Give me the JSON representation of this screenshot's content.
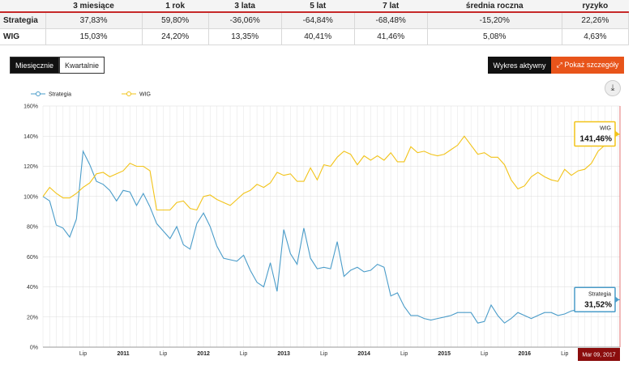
{
  "table": {
    "headers": [
      "",
      "3 miesiące",
      "1 rok",
      "3 lata",
      "5 lat",
      "7 lat",
      "średnia roczna",
      "ryzyko"
    ],
    "rows": [
      {
        "name": "Strategia",
        "values": [
          "37,83%",
          "59,80%",
          "-36,06%",
          "-64,84%",
          "-68,48%",
          "-15,20%",
          "22,26%"
        ]
      },
      {
        "name": "WIG",
        "values": [
          "15,03%",
          "24,20%",
          "13,35%",
          "40,41%",
          "41,46%",
          "5,08%",
          "4,63%"
        ]
      }
    ]
  },
  "controls": {
    "monthly_label": "Miesięcznie",
    "quarterly_label": "Kwartalnie",
    "active_chart_label": "Wykres aktywny",
    "details_label": "Pokaż szczegóły",
    "download_icon": "download-icon",
    "expand_icon": "expand-icon"
  },
  "colors": {
    "strategia": "#4a9cc9",
    "wig": "#f2c318",
    "accent": "#e8541a",
    "date_badge": "#8b0d0d"
  },
  "chart_data": {
    "type": "line",
    "title": "",
    "xlabel": "",
    "ylabel": "",
    "ylim": [
      0,
      160
    ],
    "y_ticks": [
      "0%",
      "20%",
      "40%",
      "60%",
      "80%",
      "100%",
      "120%",
      "140%",
      "160%"
    ],
    "x_ticks": [
      "Lip",
      "2011",
      "Lip",
      "2012",
      "Lip",
      "2013",
      "Lip",
      "2014",
      "Lip",
      "2015",
      "Lip",
      "2016",
      "Lip"
    ],
    "x_range": [
      "2010-01",
      "2017-03"
    ],
    "grid": true,
    "legend_position": "top-left",
    "current_date": "Mar 09, 2017",
    "series": [
      {
        "name": "Strategia",
        "last_value_label": "31,52%",
        "points": [
          [
            "2010-01",
            100
          ],
          [
            "2010-02",
            97
          ],
          [
            "2010-03",
            81
          ],
          [
            "2010-04",
            79
          ],
          [
            "2010-05",
            73
          ],
          [
            "2010-06",
            85
          ],
          [
            "2010-07",
            130
          ],
          [
            "2010-08",
            121
          ],
          [
            "2010-09",
            110
          ],
          [
            "2010-10",
            108
          ],
          [
            "2010-11",
            104
          ],
          [
            "2010-12",
            97
          ],
          [
            "2011-01",
            104
          ],
          [
            "2011-02",
            103
          ],
          [
            "2011-03",
            94
          ],
          [
            "2011-04",
            102
          ],
          [
            "2011-05",
            93
          ],
          [
            "2011-06",
            82
          ],
          [
            "2011-07",
            77
          ],
          [
            "2011-08",
            72
          ],
          [
            "2011-09",
            80
          ],
          [
            "2011-10",
            68
          ],
          [
            "2011-11",
            65
          ],
          [
            "2011-12",
            82
          ],
          [
            "2012-01",
            89
          ],
          [
            "2012-02",
            80
          ],
          [
            "2012-03",
            67
          ],
          [
            "2012-04",
            59
          ],
          [
            "2012-05",
            58
          ],
          [
            "2012-06",
            57
          ],
          [
            "2012-07",
            61
          ],
          [
            "2012-08",
            51
          ],
          [
            "2012-09",
            43
          ],
          [
            "2012-10",
            40
          ],
          [
            "2012-11",
            56
          ],
          [
            "2012-12",
            37
          ],
          [
            "2013-01",
            78
          ],
          [
            "2013-02",
            62
          ],
          [
            "2013-03",
            55
          ],
          [
            "2013-04",
            79
          ],
          [
            "2013-05",
            59
          ],
          [
            "2013-06",
            52
          ],
          [
            "2013-07",
            53
          ],
          [
            "2013-08",
            52
          ],
          [
            "2013-09",
            70
          ],
          [
            "2013-10",
            47
          ],
          [
            "2013-11",
            51
          ],
          [
            "2013-12",
            53
          ],
          [
            "2014-01",
            50
          ],
          [
            "2014-02",
            51
          ],
          [
            "2014-03",
            55
          ],
          [
            "2014-04",
            53
          ],
          [
            "2014-05",
            34
          ],
          [
            "2014-06",
            36
          ],
          [
            "2014-07",
            27
          ],
          [
            "2014-08",
            21
          ],
          [
            "2014-09",
            21
          ],
          [
            "2014-10",
            19
          ],
          [
            "2014-11",
            18
          ],
          [
            "2014-12",
            19
          ],
          [
            "2015-01",
            20
          ],
          [
            "2015-02",
            21
          ],
          [
            "2015-03",
            23
          ],
          [
            "2015-04",
            23
          ],
          [
            "2015-05",
            23
          ],
          [
            "2015-06",
            16
          ],
          [
            "2015-07",
            17
          ],
          [
            "2015-08",
            28
          ],
          [
            "2015-09",
            21
          ],
          [
            "2015-10",
            16
          ],
          [
            "2015-11",
            19
          ],
          [
            "2015-12",
            23
          ],
          [
            "2016-01",
            21
          ],
          [
            "2016-02",
            19
          ],
          [
            "2016-03",
            21
          ],
          [
            "2016-04",
            23
          ],
          [
            "2016-05",
            23
          ],
          [
            "2016-06",
            21
          ],
          [
            "2016-07",
            22
          ],
          [
            "2016-08",
            24
          ],
          [
            "2016-09",
            25
          ],
          [
            "2016-10",
            26
          ],
          [
            "2016-11",
            27
          ],
          [
            "2016-12",
            29
          ],
          [
            "2017-01",
            30
          ],
          [
            "2017-02",
            31
          ],
          [
            "2017-03",
            31.52
          ]
        ]
      },
      {
        "name": "WIG",
        "last_value_label": "141,46%",
        "points": [
          [
            "2010-01",
            100
          ],
          [
            "2010-02",
            106
          ],
          [
            "2010-03",
            102
          ],
          [
            "2010-04",
            99
          ],
          [
            "2010-05",
            99
          ],
          [
            "2010-06",
            102
          ],
          [
            "2010-07",
            106
          ],
          [
            "2010-08",
            109
          ],
          [
            "2010-09",
            115
          ],
          [
            "2010-10",
            116
          ],
          [
            "2010-11",
            113
          ],
          [
            "2010-12",
            115
          ],
          [
            "2011-01",
            117
          ],
          [
            "2011-02",
            122
          ],
          [
            "2011-03",
            120
          ],
          [
            "2011-04",
            120
          ],
          [
            "2011-05",
            117
          ],
          [
            "2011-06",
            91
          ],
          [
            "2011-07",
            91
          ],
          [
            "2011-08",
            91
          ],
          [
            "2011-09",
            96
          ],
          [
            "2011-10",
            97
          ],
          [
            "2011-11",
            92
          ],
          [
            "2011-12",
            91
          ],
          [
            "2012-01",
            100
          ],
          [
            "2012-02",
            101
          ],
          [
            "2012-03",
            98
          ],
          [
            "2012-04",
            96
          ],
          [
            "2012-05",
            94
          ],
          [
            "2012-06",
            98
          ],
          [
            "2012-07",
            102
          ],
          [
            "2012-08",
            104
          ],
          [
            "2012-09",
            108
          ],
          [
            "2012-10",
            106
          ],
          [
            "2012-11",
            109
          ],
          [
            "2012-12",
            116
          ],
          [
            "2013-01",
            114
          ],
          [
            "2013-02",
            115
          ],
          [
            "2013-03",
            110
          ],
          [
            "2013-04",
            110
          ],
          [
            "2013-05",
            119
          ],
          [
            "2013-06",
            111
          ],
          [
            "2013-07",
            121
          ],
          [
            "2013-08",
            120
          ],
          [
            "2013-09",
            126
          ],
          [
            "2013-10",
            130
          ],
          [
            "2013-11",
            128
          ],
          [
            "2013-12",
            121
          ],
          [
            "2014-01",
            127
          ],
          [
            "2014-02",
            124
          ],
          [
            "2014-03",
            127
          ],
          [
            "2014-04",
            124
          ],
          [
            "2014-05",
            129
          ],
          [
            "2014-06",
            123
          ],
          [
            "2014-07",
            123
          ],
          [
            "2014-08",
            133
          ],
          [
            "2014-09",
            129
          ],
          [
            "2014-10",
            130
          ],
          [
            "2014-11",
            128
          ],
          [
            "2014-12",
            127
          ],
          [
            "2015-01",
            128
          ],
          [
            "2015-02",
            131
          ],
          [
            "2015-03",
            134
          ],
          [
            "2015-04",
            140
          ],
          [
            "2015-05",
            134
          ],
          [
            "2015-06",
            128
          ],
          [
            "2015-07",
            129
          ],
          [
            "2015-08",
            126
          ],
          [
            "2015-09",
            126
          ],
          [
            "2015-10",
            121
          ],
          [
            "2015-11",
            111
          ],
          [
            "2015-12",
            105
          ],
          [
            "2016-01",
            107
          ],
          [
            "2016-02",
            113
          ],
          [
            "2016-03",
            116
          ],
          [
            "2016-04",
            113
          ],
          [
            "2016-05",
            111
          ],
          [
            "2016-06",
            110
          ],
          [
            "2016-07",
            118
          ],
          [
            "2016-08",
            114
          ],
          [
            "2016-09",
            117
          ],
          [
            "2016-10",
            118
          ],
          [
            "2016-11",
            122
          ],
          [
            "2016-12",
            130
          ],
          [
            "2017-01",
            134
          ],
          [
            "2017-02",
            139
          ],
          [
            "2017-03",
            141.46
          ]
        ]
      }
    ]
  }
}
